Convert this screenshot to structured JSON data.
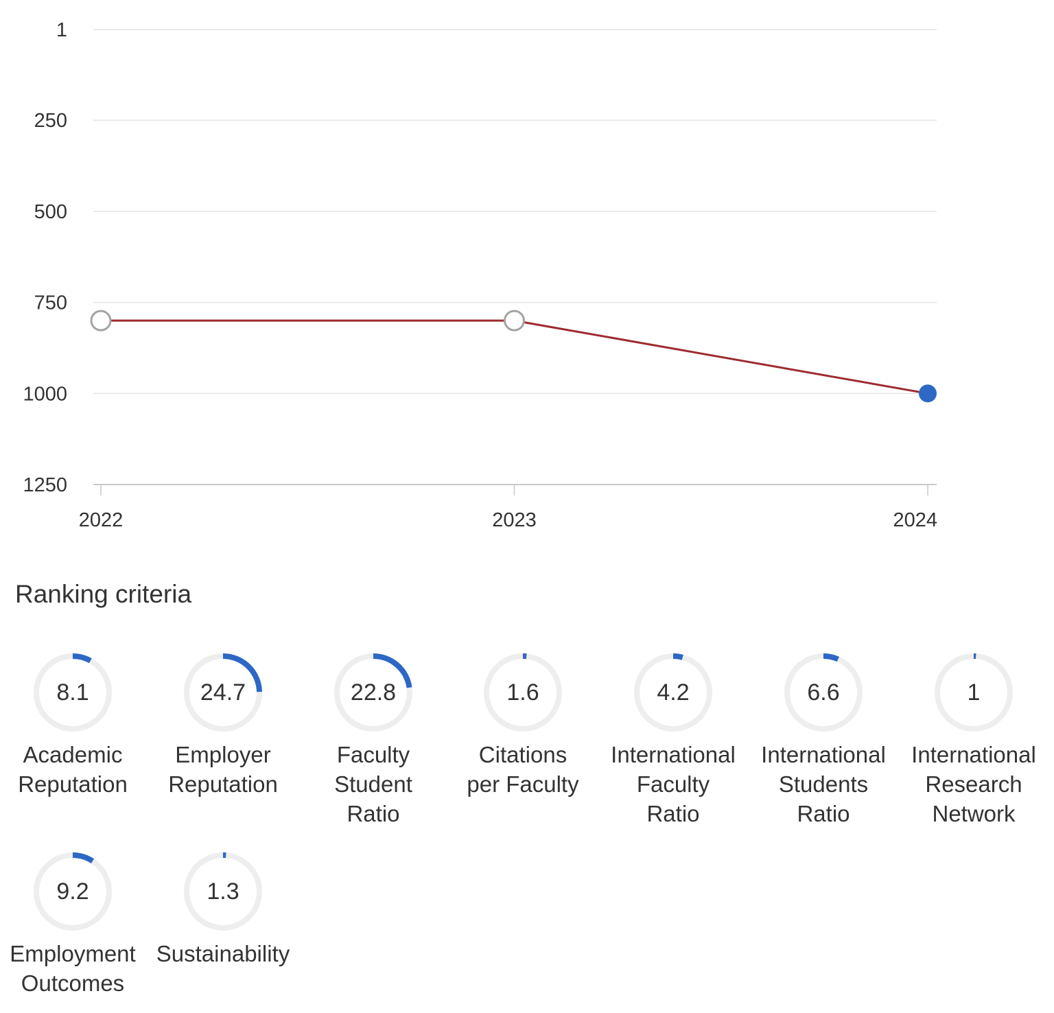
{
  "chart_data": {
    "type": "line",
    "x": [
      "2022",
      "2023",
      "2024"
    ],
    "series": [
      {
        "values": [
          800,
          800,
          1000
        ]
      }
    ],
    "y_ticks": [
      "1",
      "250",
      "500",
      "750",
      "1000",
      "1250"
    ],
    "y_tick_values": [
      1,
      250,
      500,
      750,
      1000,
      1250
    ],
    "ylim": [
      1,
      1250
    ],
    "y_inverted": true,
    "grid": true,
    "title": "",
    "xlabel": "",
    "ylabel": ""
  },
  "colors": {
    "line": "#9e2a2f",
    "highlight_point": "#2c68c4",
    "past_point": "#a3a3a3",
    "gauge_track": "#eeeeee",
    "gauge_fill": "#2c68c4",
    "grid": "#e3e3e3"
  },
  "criteria": {
    "title": "Ranking criteria",
    "items": [
      {
        "label": "Academic\nReputation",
        "value": "8.1",
        "score": 8.1
      },
      {
        "label": "Employer\nReputation",
        "value": "24.7",
        "score": 24.7
      },
      {
        "label": "Faculty\nStudent\nRatio",
        "value": "22.8",
        "score": 22.8
      },
      {
        "label": "Citations\nper Faculty",
        "value": "1.6",
        "score": 1.6
      },
      {
        "label": "International\nFaculty\nRatio",
        "value": "4.2",
        "score": 4.2
      },
      {
        "label": "International\nStudents\nRatio",
        "value": "6.6",
        "score": 6.6
      },
      {
        "label": "International\nResearch\nNetwork",
        "value": "1",
        "score": 1
      },
      {
        "label": "Employment\nOutcomes",
        "value": "9.2",
        "score": 9.2
      },
      {
        "label": "Sustainability",
        "value": "1.3",
        "score": 1.3
      }
    ]
  }
}
